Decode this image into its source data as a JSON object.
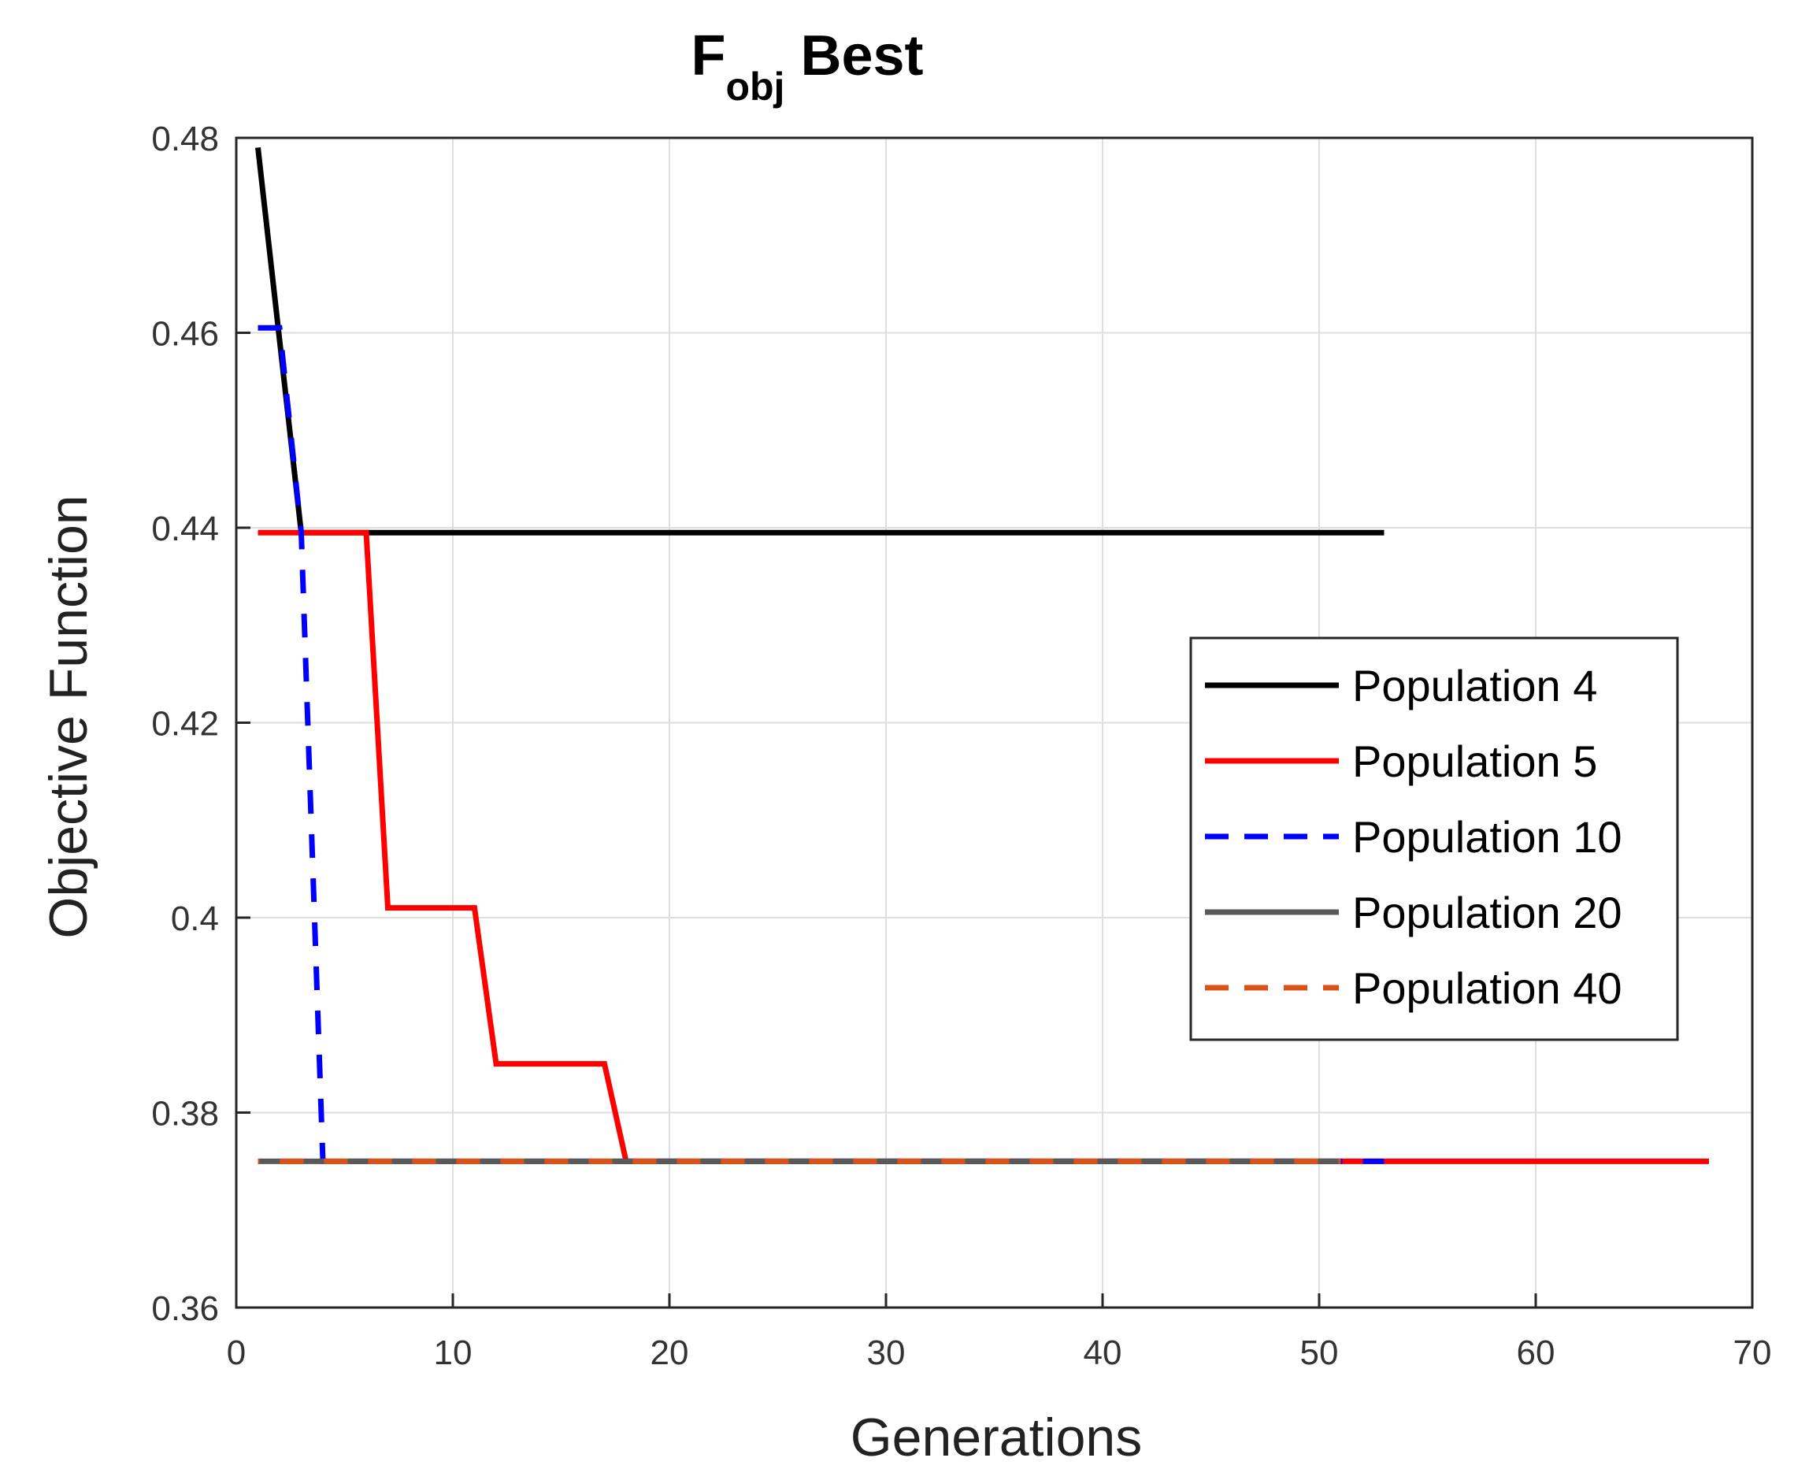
{
  "chart_data": {
    "type": "line",
    "title": {
      "main": "F",
      "subscript": "obj",
      "rest": " Best"
    },
    "xlabel": "Generations",
    "ylabel": "Objective Function",
    "xlim": [
      0,
      70
    ],
    "ylim": [
      0.36,
      0.48
    ],
    "xticks": [
      0,
      10,
      20,
      30,
      40,
      50,
      60,
      70
    ],
    "xtick_labels": [
      "0",
      "10",
      "20",
      "30",
      "40",
      "50",
      "60",
      "70"
    ],
    "yticks": [
      0.36,
      0.38,
      0.4,
      0.42,
      0.44,
      0.46,
      0.48
    ],
    "ytick_labels": [
      "0.36",
      "0.38",
      "0.4",
      "0.42",
      "0.44",
      "0.46",
      "0.48"
    ],
    "grid": true,
    "legend_position": "right",
    "series": [
      {
        "name": "Population 4",
        "color": "#000000",
        "dash": "solid",
        "x": [
          1,
          3,
          53
        ],
        "y": [
          0.479,
          0.4395,
          0.4395
        ]
      },
      {
        "name": "Population 5",
        "color": "#ff0000",
        "dash": "solid",
        "x": [
          1,
          6,
          7,
          11,
          12,
          17,
          18,
          68
        ],
        "y": [
          0.4395,
          0.4395,
          0.401,
          0.401,
          0.385,
          0.385,
          0.375,
          0.375
        ]
      },
      {
        "name": "Population 10",
        "color": "#0000ff",
        "dash": "dashed",
        "x": [
          1,
          2,
          3,
          4,
          53
        ],
        "y": [
          0.4605,
          0.4605,
          0.4395,
          0.375,
          0.375
        ]
      },
      {
        "name": "Population 20",
        "color": "#595959",
        "dash": "solid",
        "x": [
          1,
          51
        ],
        "y": [
          0.375,
          0.375
        ]
      },
      {
        "name": "Population 40",
        "color": "#d95319",
        "dash": "dashed",
        "x": [
          1,
          51
        ],
        "y": [
          0.375,
          0.375
        ]
      }
    ]
  }
}
